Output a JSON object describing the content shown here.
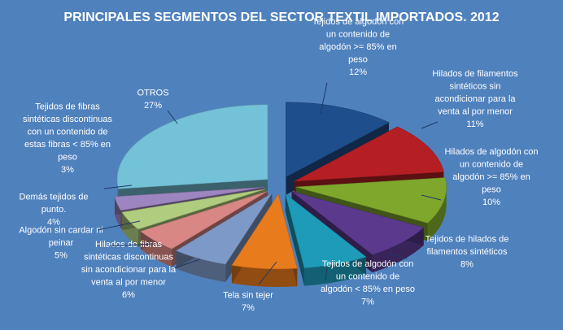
{
  "chart_data": {
    "type": "pie",
    "title": "PRINCIPALES SEGMENTOS DEL SECTOR TEXTIL IMPORTADOS. 2012",
    "unit": "%",
    "slices": [
      {
        "label": [
          "Tejidos de algodón con",
          "un contenido de",
          "algodón >= 85% en",
          "peso"
        ],
        "value": 12,
        "value_label": "12%",
        "color": "#1f4e8c"
      },
      {
        "label": [
          "Hilados de filamentos",
          "sintéticos sin",
          "acondicionar para la",
          "venta  al por menor"
        ],
        "value": 11,
        "value_label": "11%",
        "color": "#b51f24"
      },
      {
        "label": [
          "Hilados de algodón con",
          "un contenido de",
          "algodón >= 85% en",
          "peso"
        ],
        "value": 10,
        "value_label": "10%",
        "color": "#7ea72c"
      },
      {
        "label": [
          "Tejidos de hilados de",
          "filamentos sintéticos"
        ],
        "value": 8,
        "value_label": "8%",
        "color": "#5b3a8e"
      },
      {
        "label": [
          "Tejidos de algodón con",
          "un contenido de",
          "algodón < 85% en peso"
        ],
        "value": 7,
        "value_label": "7%",
        "color": "#1d9bb8"
      },
      {
        "label": [
          "Tela sin tejer"
        ],
        "value": 7,
        "value_label": "7%",
        "color": "#e87b1c"
      },
      {
        "label": [
          "Hilados de fibras",
          "sintéticas discontinuas",
          "sin acondicionar para la",
          "venta  al por menor"
        ],
        "value": 6,
        "value_label": "6%",
        "color": "#7d99c8"
      },
      {
        "label": [
          "Algodón sin cardar ni",
          "peinar"
        ],
        "value": 5,
        "value_label": "5%",
        "color": "#d98785"
      },
      {
        "label": [
          "Demás tejidos de",
          "punto."
        ],
        "value": 4,
        "value_label": "4%",
        "color": "#b0cc7e"
      },
      {
        "label": [
          "Tejidos de fibras",
          "sintéticas discontinuas",
          "con un contenido de",
          "estas fibras < 85% en",
          "peso"
        ],
        "value": 3,
        "value_label": "3%",
        "color": "#9d86c0"
      },
      {
        "label": [
          "OTROS"
        ],
        "value": 27,
        "value_label": "27%",
        "color": "#74c2d8"
      }
    ]
  }
}
